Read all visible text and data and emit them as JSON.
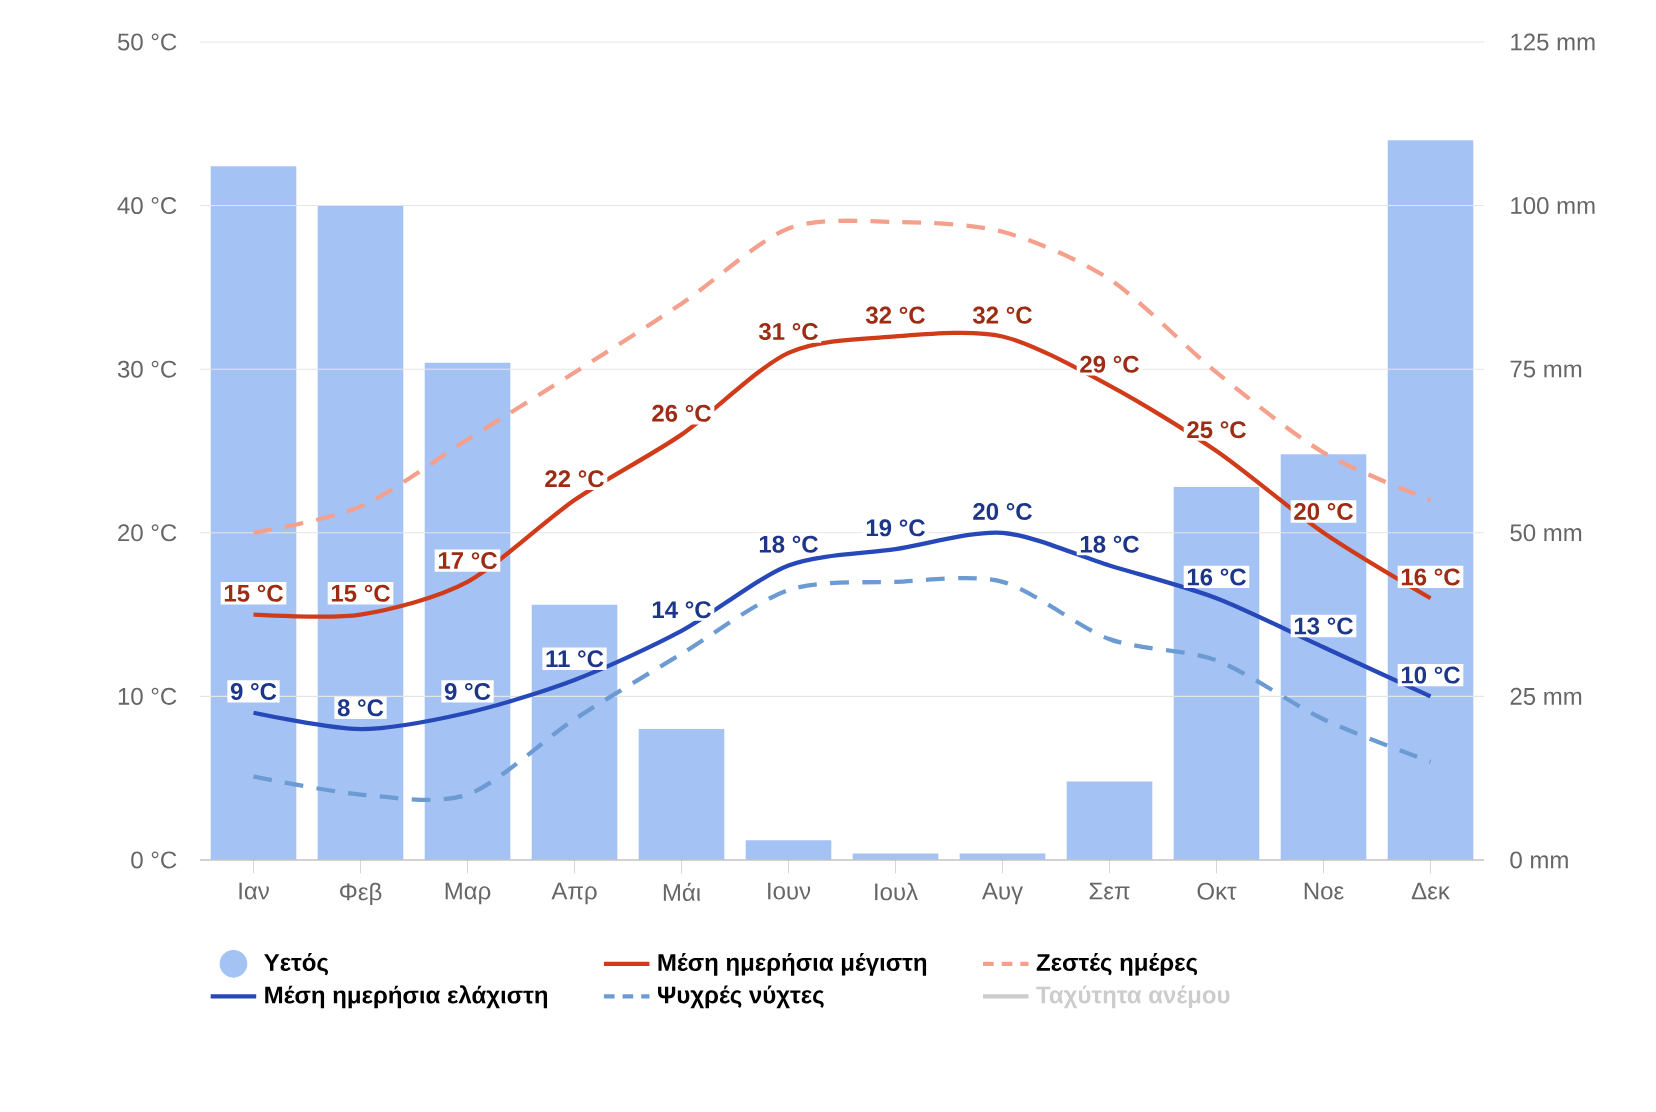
{
  "chart_data": {
    "type": "line",
    "categories": [
      "Ιαν",
      "Φεβ",
      "Μαρ",
      "Απρ",
      "Μάι",
      "Ιουν",
      "Ιουλ",
      "Αυγ",
      "Σεπ",
      "Οκτ",
      "Νοε",
      "Δεκ"
    ],
    "series": [
      {
        "name": "Υετός",
        "type": "bar",
        "axis": "y2",
        "color": "#a4c2f4",
        "values": [
          106,
          100,
          76,
          39,
          20,
          3,
          1,
          1,
          12,
          57,
          62,
          110
        ]
      },
      {
        "name": "Μέση ημερήσια μέγιστη",
        "color": "#d03b1a",
        "line_style": "solid",
        "values": [
          15,
          15,
          17,
          22,
          26,
          31,
          32,
          32,
          29,
          25,
          20,
          16
        ],
        "value_labels": [
          "15 °C",
          "15 °C",
          "17 °C",
          "22 °C",
          "26 °C",
          "31 °C",
          "32 °C",
          "32 °C",
          "29 °C",
          "25 °C",
          "20 °C",
          "16 °C"
        ]
      },
      {
        "name": "Ζεστές ημέρες",
        "color": "#f4a08c",
        "line_style": "dashed",
        "values": [
          20,
          21.6,
          25.7,
          29.8,
          34,
          38.6,
          39,
          38.4,
          35.5,
          29.8,
          24.9,
          22
        ]
      },
      {
        "name": "Μέση ημερήσια ελάχιστη",
        "color": "#2648b8",
        "line_style": "solid",
        "values": [
          9,
          8,
          9,
          11,
          14,
          18,
          19,
          20,
          18,
          16,
          13,
          10
        ],
        "value_labels": [
          "9 °C",
          "8 °C",
          "9 °C",
          "11 °C",
          "14 °C",
          "18 °C",
          "19 °C",
          "20 °C",
          "18 °C",
          "16 °C",
          "13 °C",
          "10 °C"
        ]
      },
      {
        "name": "Ψυχρές νύχτες",
        "color": "#6b9bd2",
        "line_style": "dashed",
        "values": [
          5.1,
          4,
          4,
          8.6,
          12.6,
          16.5,
          17,
          17,
          13.5,
          12.2,
          8.6,
          6
        ]
      },
      {
        "name": "Ταχύτητα ανέμου",
        "color": "#cccccc",
        "line_style": "solid",
        "values": [
          null,
          null,
          null,
          null,
          null,
          null,
          null,
          null,
          null,
          null,
          null,
          null
        ]
      }
    ],
    "ylim": [
      0,
      50
    ],
    "yticks": [
      {
        "value": 0,
        "label": "0 °C"
      },
      {
        "value": 10,
        "label": "10 °C"
      },
      {
        "value": 20,
        "label": "20 °C"
      },
      {
        "value": 30,
        "label": "30 °C"
      },
      {
        "value": 40,
        "label": "40 °C"
      },
      {
        "value": 50,
        "label": "50 °C"
      }
    ],
    "y2lim": [
      0,
      125
    ],
    "y2ticks": [
      {
        "value": 0,
        "label": "0 mm"
      },
      {
        "value": 25,
        "label": "25 mm"
      },
      {
        "value": 50,
        "label": "50 mm"
      },
      {
        "value": 75,
        "label": "75 mm"
      },
      {
        "value": 100,
        "label": "100 mm"
      },
      {
        "value": 125,
        "label": "125 mm"
      }
    ],
    "grid": "y",
    "legend": "bottom"
  }
}
